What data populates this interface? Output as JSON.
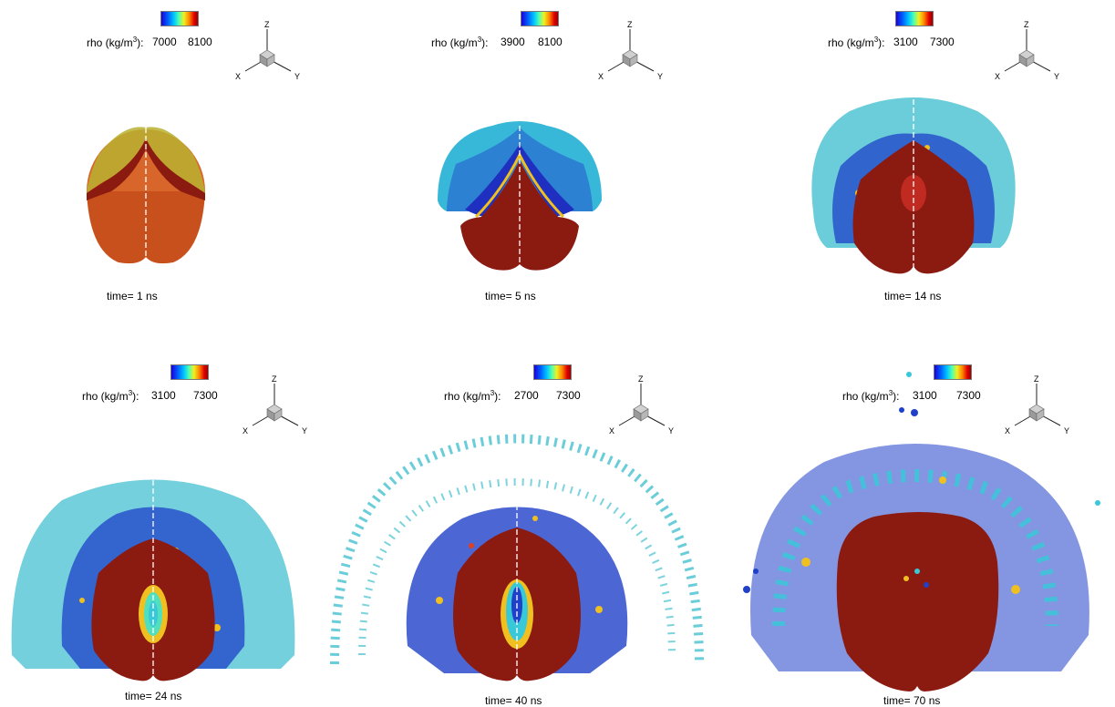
{
  "panels": [
    {
      "id": "p1",
      "colorbar": {
        "quantity": "rho (kg/m",
        "unit_suffix": "):",
        "min": "7000",
        "max": "8100"
      },
      "time_label": "time= 1 ns",
      "axes": {
        "z": "Z",
        "x": "X",
        "y": "Y"
      }
    },
    {
      "id": "p2",
      "colorbar": {
        "quantity": "rho (kg/m",
        "unit_suffix": "):",
        "min": "3900",
        "max": "8100"
      },
      "time_label": "time= 5 ns",
      "axes": {
        "z": "Z",
        "x": "X",
        "y": "Y"
      }
    },
    {
      "id": "p3",
      "colorbar": {
        "quantity": "rho (kg/m",
        "unit_suffix": "):",
        "min": "3100",
        "max": "7300"
      },
      "time_label": "time= 14 ns",
      "axes": {
        "z": "Z",
        "x": "X",
        "y": "Y"
      }
    },
    {
      "id": "p4",
      "colorbar": {
        "quantity": "rho (kg/m",
        "unit_suffix": "):",
        "min": "3100",
        "max": "7300"
      },
      "time_label": "time= 24 ns",
      "axes": {
        "z": "Z",
        "x": "X",
        "y": "Y"
      }
    },
    {
      "id": "p5",
      "colorbar": {
        "quantity": "rho (kg/m",
        "unit_suffix": "):",
        "min": "2700",
        "max": "7300"
      },
      "time_label": "time= 40 ns",
      "axes": {
        "z": "Z",
        "x": "X",
        "y": "Y"
      }
    },
    {
      "id": "p6",
      "colorbar": {
        "quantity": "rho (kg/m",
        "unit_suffix": "):",
        "min": "3100",
        "max": "7300"
      },
      "time_label": "time= 70 ns",
      "axes": {
        "z": "Z",
        "x": "X",
        "y": "Y"
      }
    }
  ],
  "superscript": "3",
  "colors": {
    "core": "#8b1a10",
    "core_light": "#d8662a",
    "blue": "#1f3fd0",
    "cyan": "#38c8d8",
    "hot": "#f0c020"
  }
}
